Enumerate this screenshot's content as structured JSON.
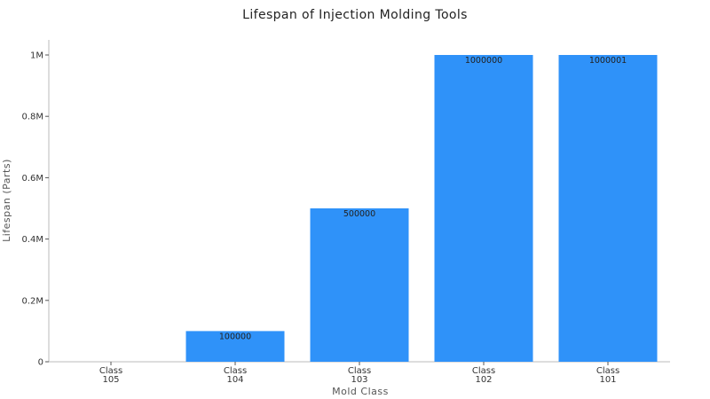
{
  "chart_data": {
    "type": "bar",
    "title": "Lifespan of Injection Molding Tools",
    "xlabel": "Mold Class",
    "ylabel": "Lifespan (Parts)",
    "categories": [
      [
        "Class",
        "105"
      ],
      [
        "Class",
        "104"
      ],
      [
        "Class",
        "103"
      ],
      [
        "Class",
        "102"
      ],
      [
        "Class",
        "101"
      ]
    ],
    "values": [
      0,
      100000,
      500000,
      1000000,
      1000001
    ],
    "data_labels": [
      "",
      "100000",
      "500000",
      "1000000",
      "1000001"
    ],
    "yticks": [
      0,
      200000,
      400000,
      600000,
      800000,
      1000000
    ],
    "ytick_labels": [
      "0",
      "0.2M",
      "0.4M",
      "0.6M",
      "0.8M",
      "1M"
    ],
    "ylim": [
      0,
      1050000
    ],
    "bar_color": "#2f92f9",
    "grid": false,
    "legend": "none"
  }
}
